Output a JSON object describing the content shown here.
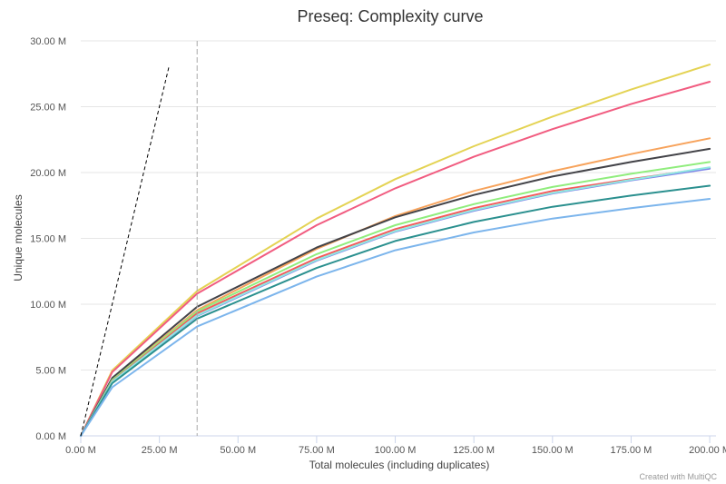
{
  "chart_data": {
    "type": "line",
    "title": "Preseq: Complexity curve",
    "xlabel": "Total molecules (including duplicates)",
    "ylabel": "Unique molecules",
    "xlim": [
      0,
      202000000
    ],
    "ylim": [
      0,
      30000000
    ],
    "x_ticks": [
      "0.00 M",
      "25.00 M",
      "50.00 M",
      "75.00 M",
      "100.00 M",
      "125.00 M",
      "150.00 M",
      "175.00 M",
      "200.00 M"
    ],
    "y_ticks": [
      "0.00 M",
      "5.00 M",
      "10.00 M",
      "15.00 M",
      "20.00 M",
      "25.00 M",
      "30.00 M"
    ],
    "grid": true,
    "credits": "Created with MultiQC",
    "reference_line": {
      "style": "dashed",
      "color": "#000000",
      "x": [
        0,
        28000000
      ],
      "y": [
        0,
        28000000
      ]
    },
    "vertical_marker": {
      "style": "dashed",
      "color": "#aaaaaa",
      "x": 37000000
    },
    "series": [
      {
        "color": "#e4d354",
        "x": [
          0,
          10000000,
          37000000,
          75000000,
          100000000,
          125000000,
          150000000,
          175000000,
          200000000
        ],
        "y": [
          0,
          4970000,
          11000000,
          16500000,
          19500000,
          22000000,
          24250000,
          26300000,
          28200000
        ]
      },
      {
        "color": "#f15c80",
        "x": [
          0,
          10000000,
          37000000,
          75000000,
          100000000,
          125000000,
          150000000,
          175000000,
          200000000
        ],
        "y": [
          0,
          4850000,
          10800000,
          16000000,
          18800000,
          21200000,
          23300000,
          25200000,
          26900000
        ]
      },
      {
        "color": "#f7a35c",
        "x": [
          0,
          10000000,
          37000000,
          75000000,
          100000000,
          125000000,
          150000000,
          175000000,
          200000000
        ],
        "y": [
          0,
          4300000,
          9550000,
          14200000,
          16700000,
          18600000,
          20100000,
          21400000,
          22600000
        ]
      },
      {
        "color": "#434348",
        "x": [
          0,
          10000000,
          37000000,
          75000000,
          100000000,
          125000000,
          150000000,
          175000000,
          200000000
        ],
        "y": [
          0,
          4400000,
          9800000,
          14300000,
          16600000,
          18300000,
          19700000,
          20800000,
          21800000
        ]
      },
      {
        "color": "#90ed7d",
        "x": [
          0,
          10000000,
          37000000,
          75000000,
          100000000,
          125000000,
          150000000,
          175000000,
          200000000
        ],
        "y": [
          0,
          4250000,
          9450000,
          13800000,
          16000000,
          17600000,
          18900000,
          19900000,
          20800000
        ]
      },
      {
        "color": "#f45b5b",
        "x": [
          0,
          10000000,
          37000000,
          75000000,
          100000000,
          125000000,
          150000000,
          175000000,
          200000000
        ],
        "y": [
          0,
          4150000,
          9300000,
          13500000,
          15700000,
          17300000,
          18600000,
          19500000,
          20350000
        ]
      },
      {
        "color": "#8085e9",
        "x": [
          0,
          10000000,
          37000000,
          75000000,
          100000000,
          125000000,
          150000000,
          175000000,
          200000000
        ],
        "y": [
          0,
          4100000,
          9100000,
          13300000,
          15500000,
          17100000,
          18400000,
          19400000,
          20300000
        ]
      },
      {
        "color": "#91e8e1",
        "x": [
          0,
          10000000,
          37000000,
          75000000,
          100000000,
          125000000,
          150000000,
          175000000,
          200000000
        ],
        "y": [
          0,
          4120000,
          9150000,
          13350000,
          15550000,
          17150000,
          18450000,
          19450000,
          20400000
        ]
      },
      {
        "color": "#2b908f",
        "x": [
          0,
          10000000,
          37000000,
          75000000,
          100000000,
          125000000,
          150000000,
          175000000,
          200000000
        ],
        "y": [
          0,
          4000000,
          8900000,
          12750000,
          14800000,
          16250000,
          17400000,
          18250000,
          19000000
        ]
      },
      {
        "color": "#7cb5ec",
        "x": [
          0,
          10000000,
          37000000,
          75000000,
          100000000,
          125000000,
          150000000,
          175000000,
          200000000
        ],
        "y": [
          0,
          3700000,
          8300000,
          12100000,
          14100000,
          15450000,
          16500000,
          17300000,
          18000000
        ]
      }
    ]
  }
}
